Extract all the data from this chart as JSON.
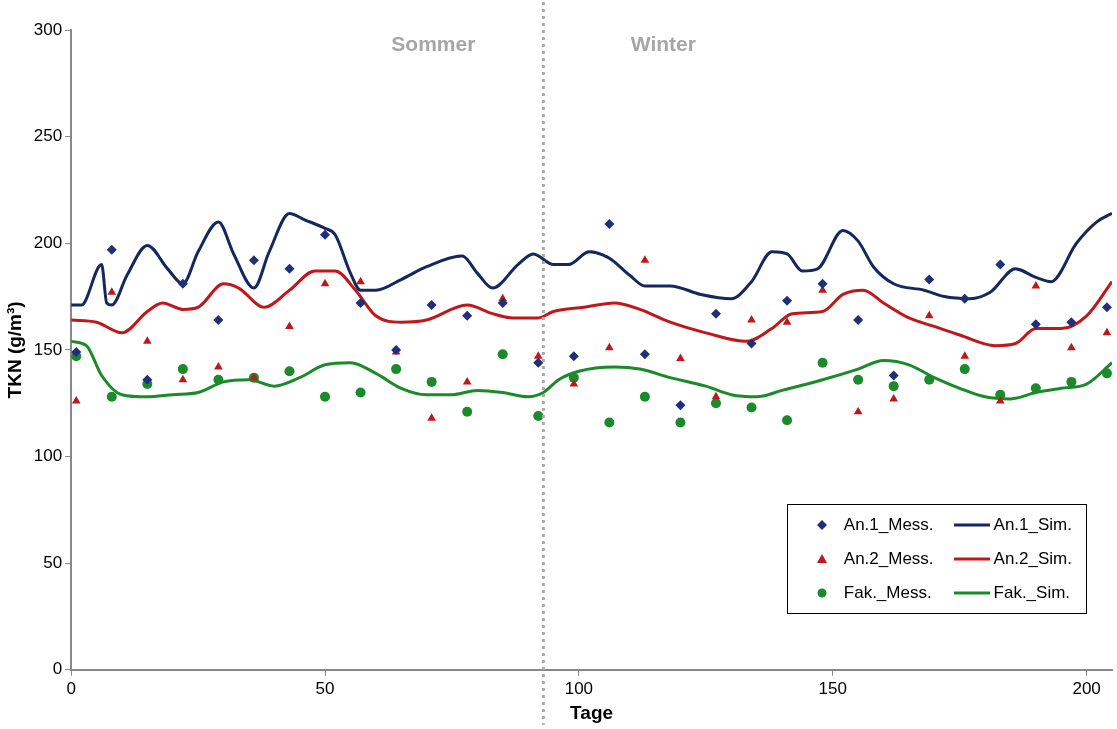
{
  "chart_data": {
    "type": "scatter",
    "xlabel": "Tage",
    "ylabel": "TKN (g/m³)",
    "xlim": [
      0,
      205
    ],
    "xticks": [
      0,
      50,
      100,
      150,
      200
    ],
    "ylim": [
      0,
      300
    ],
    "yticks": [
      0,
      50,
      100,
      150,
      200,
      250,
      300
    ],
    "grid": false,
    "legend": "bottom right",
    "annotations": [
      "Sommer",
      "Winter"
    ],
    "ref_lines": [
      {
        "axis": "x",
        "value": 93,
        "label": null,
        "color": "#aaaaaa",
        "line_style": "dotted"
      }
    ],
    "series": [
      {
        "name": "An.1_Mess.",
        "marker": "diamond",
        "color": "#1f2f7a",
        "x": [
          1,
          8,
          15,
          22,
          29,
          36,
          43,
          50,
          57,
          64,
          71,
          78,
          85,
          92,
          99,
          106,
          113,
          120,
          127,
          134,
          141,
          148,
          155,
          162,
          169,
          176,
          183,
          190,
          197,
          204
        ],
        "values": [
          149,
          197,
          136,
          181,
          164,
          192,
          188,
          204,
          172,
          150,
          171,
          166,
          172,
          144,
          147,
          209,
          148,
          124,
          167,
          153,
          173,
          181,
          164,
          138,
          183,
          174,
          190,
          162,
          163,
          170
        ]
      },
      {
        "name": "An.1_Sim.",
        "type": "line",
        "marker": "none",
        "line_style": "solid",
        "color": "#14285e",
        "x": [
          0,
          2,
          6,
          7,
          8,
          11,
          15,
          19,
          22,
          25,
          29,
          32,
          36,
          39,
          43,
          46,
          50,
          52,
          55,
          57,
          60,
          65,
          70,
          77,
          80,
          83,
          88,
          91,
          95,
          98,
          102,
          106,
          110,
          113,
          118,
          124,
          130,
          134,
          138,
          141,
          144,
          147,
          152,
          155,
          158,
          162,
          168,
          172,
          177,
          181,
          186,
          190,
          193,
          198,
          202,
          205
        ],
        "values": [
          171,
          171,
          190,
          172,
          171,
          185,
          199,
          188,
          181,
          196,
          210,
          195,
          179,
          196,
          214,
          211,
          207,
          204,
          186,
          178,
          178,
          183,
          189,
          194,
          186,
          179,
          190,
          195,
          190,
          190,
          196,
          193,
          185,
          180,
          180,
          176,
          174,
          182,
          196,
          195,
          187,
          188,
          206,
          201,
          189,
          181,
          178,
          175,
          174,
          177,
          188,
          184,
          182,
          200,
          210,
          214
        ]
      },
      {
        "name": "An.2_Mess.",
        "marker": "triangle",
        "color": "#c0171c",
        "x": [
          1,
          8,
          15,
          22,
          29,
          36,
          43,
          50,
          57,
          64,
          71,
          78,
          85,
          92,
          99,
          106,
          113,
          120,
          127,
          134,
          141,
          148,
          155,
          162,
          169,
          176,
          183,
          190,
          197,
          204
        ],
        "values": [
          126,
          177,
          154,
          136,
          142,
          137,
          161,
          181,
          182,
          149,
          118,
          135,
          174,
          147,
          134,
          151,
          192,
          146,
          128,
          164,
          163,
          178,
          121,
          127,
          166,
          147,
          126,
          180,
          151,
          158
        ]
      },
      {
        "name": "An.2_Sim.",
        "type": "line",
        "marker": "none",
        "line_style": "solid",
        "color": "#c0171c",
        "x": [
          0,
          5,
          10,
          15,
          18,
          22,
          25,
          30,
          33,
          38,
          43,
          48,
          52,
          56,
          60,
          65,
          70,
          78,
          83,
          87,
          92,
          95,
          101,
          107,
          112,
          118,
          125,
          133,
          138,
          142,
          148,
          152,
          156,
          160,
          165,
          170,
          175,
          182,
          186,
          190,
          195,
          200,
          205
        ],
        "values": [
          164,
          163,
          158,
          168,
          172,
          169,
          170,
          181,
          179,
          170,
          178,
          187,
          187,
          178,
          166,
          163,
          164,
          171,
          167,
          165,
          165,
          168,
          170,
          172,
          169,
          163,
          158,
          154,
          160,
          167,
          168,
          176,
          178,
          172,
          165,
          161,
          157,
          152,
          153,
          160,
          160,
          166,
          182
        ]
      },
      {
        "name": "Fak._Mess.",
        "marker": "circle",
        "color": "#1a8a2a",
        "x": [
          1,
          8,
          15,
          22,
          29,
          36,
          43,
          50,
          57,
          64,
          71,
          78,
          85,
          92,
          99,
          106,
          113,
          120,
          127,
          134,
          141,
          148,
          155,
          162,
          169,
          176,
          183,
          190,
          197,
          204
        ],
        "values": [
          147,
          128,
          134,
          141,
          136,
          137,
          140,
          128,
          130,
          141,
          135,
          121,
          148,
          119,
          137,
          116,
          128,
          116,
          125,
          123,
          117,
          144,
          136,
          133,
          136,
          141,
          129,
          132,
          135,
          139
        ]
      },
      {
        "name": "Fak._Sim.",
        "type": "line",
        "marker": "none",
        "line_style": "solid",
        "color": "#1a8a2a",
        "x": [
          0,
          3,
          6,
          10,
          15,
          20,
          25,
          30,
          35,
          40,
          45,
          50,
          55,
          60,
          65,
          70,
          75,
          80,
          85,
          90,
          93,
          96,
          100,
          107,
          112,
          118,
          125,
          130,
          135,
          140,
          148,
          155,
          160,
          165,
          170,
          175,
          180,
          185,
          190,
          195,
          200,
          205
        ],
        "values": [
          154,
          152,
          138,
          129,
          128,
          129,
          130,
          135,
          136,
          133,
          137,
          143,
          144,
          139,
          132,
          129,
          129,
          131,
          130,
          128,
          130,
          136,
          140,
          142,
          141,
          137,
          133,
          129,
          128,
          131,
          136,
          141,
          145,
          143,
          137,
          132,
          128,
          127,
          130,
          132,
          134,
          144
        ]
      }
    ]
  }
}
